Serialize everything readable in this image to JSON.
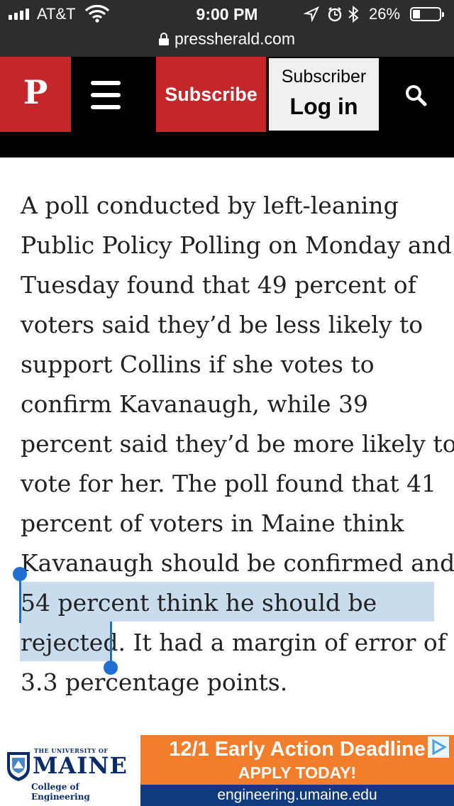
{
  "status_bar": {
    "carrier": "AT&T",
    "time": "9:00 PM",
    "battery": "26%",
    "battery_level": 0.26
  },
  "url_bar": {
    "url": "pressherald.com"
  },
  "header": {
    "logo": "P",
    "subscribe": "Subscribe",
    "login_line1": "Subscriber",
    "login_line2": "Log in"
  },
  "article": {
    "lines": [
      "A poll conducted by left-leaning",
      "Public Policy Polling on Monday and",
      "Tuesday found that 49 percent of",
      "voters said they’d be less likely to",
      "support Collins if she votes to",
      "confirm Kavanaugh, while 39",
      "percent said they’d be more likely to",
      "vote for her. The poll found that 41",
      "percent of voters in Maine think",
      "Kavanaugh should be confirmed and",
      "54 percent think he should be",
      "rejected",
      ". It had a margin of error of",
      "3.3 percentage points."
    ],
    "selected_text": "54 percent think he should be rejected",
    "selection_color": "#c9dcee"
  },
  "ad": {
    "univ_small": "THE UNIVERSITY OF",
    "univ_name": "MAINE",
    "college": "College of Engineering",
    "headline": "12/1 Early Action Deadline",
    "cta": "APPLY TODAY!",
    "url": "engineering.umaine.edu"
  },
  "colors": {
    "brand_red": "#c4262a",
    "ad_orange": "#f47d2b",
    "ad_navy": "#103a7d",
    "selection_handle": "#1f6fd2"
  }
}
